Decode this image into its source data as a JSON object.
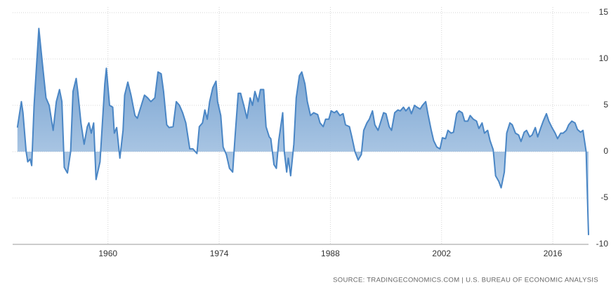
{
  "chart_data": {
    "type": "area",
    "source": "SOURCE: TRADINGECONOMICS.COM | U.S. BUREAU OF ECONOMIC ANALYSIS",
    "x": [
      1948.6,
      1949.1,
      1949.3,
      1949.7,
      1949.9,
      1950.2,
      1950.4,
      1950.7,
      1951.3,
      1951.7,
      1952.2,
      1952.6,
      1953.1,
      1953.5,
      1953.9,
      1954.2,
      1954.5,
      1954.9,
      1955.3,
      1955.6,
      1956,
      1956.2,
      1956.6,
      1957,
      1957.4,
      1957.6,
      1957.9,
      1958.2,
      1958.5,
      1959,
      1959.3,
      1959.6,
      1959.8,
      1960.2,
      1960.6,
      1960.8,
      1961.1,
      1961.5,
      1961.9,
      1962.1,
      1962.5,
      1962.9,
      1963.4,
      1963.7,
      1964.2,
      1964.6,
      1965,
      1965.4,
      1965.9,
      1966.3,
      1966.7,
      1967,
      1967.4,
      1967.7,
      1968.2,
      1968.6,
      1969,
      1969.4,
      1969.8,
      1970.3,
      1970.7,
      1971.2,
      1971.5,
      1971.9,
      1972.2,
      1972.5,
      1972.8,
      1973.2,
      1973.6,
      1973.8,
      1974.2,
      1974.5,
      1974.9,
      1975.3,
      1975.7,
      1976,
      1976.4,
      1976.7,
      1977.1,
      1977.5,
      1977.9,
      1978.2,
      1978.5,
      1978.9,
      1979.2,
      1979.6,
      1979.9,
      1980.3,
      1980.5,
      1980.9,
      1981.2,
      1981.5,
      1982,
      1982.2,
      1982.5,
      1982.7,
      1983,
      1983.4,
      1983.7,
      1984.1,
      1984.4,
      1984.8,
      1985.1,
      1985.5,
      1985.9,
      1986.4,
      1986.7,
      1987.1,
      1987.4,
      1987.8,
      1988.1,
      1988.5,
      1988.8,
      1989.2,
      1989.6,
      1989.9,
      1990.4,
      1990.7,
      1991.1,
      1991.5,
      1991.9,
      1992.2,
      1992.6,
      1992.9,
      1993.3,
      1993.6,
      1994,
      1994.3,
      1994.7,
      1995,
      1995.4,
      1995.7,
      1996.1,
      1996.5,
      1996.8,
      1997.2,
      1997.5,
      1997.9,
      1998.2,
      1998.6,
      1998.9,
      1999.3,
      1999.6,
      2000,
      2000.3,
      2000.7,
      2001,
      2001.4,
      2001.8,
      2002.1,
      2002.5,
      2002.8,
      2003.2,
      2003.5,
      2003.9,
      2004.2,
      2004.6,
      2004.9,
      2005.3,
      2005.6,
      2006,
      2006.4,
      2006.7,
      2007.1,
      2007.4,
      2007.8,
      2008.1,
      2008.5,
      2008.8,
      2009.2,
      2009.5,
      2009.9,
      2010.2,
      2010.6,
      2010.9,
      2011.3,
      2011.7,
      2012,
      2012.4,
      2012.7,
      2013.1,
      2013.4,
      2013.8,
      2014.1,
      2014.5,
      2014.8,
      2015.2,
      2015.5,
      2015.9,
      2016.3,
      2016.6,
      2017,
      2017.3,
      2017.7,
      2018,
      2018.4,
      2018.8,
      2019.1,
      2019.5,
      2019.8,
      2020.2,
      2020.5
    ],
    "values": [
      2.6,
      5.4,
      4.2,
      0,
      -1.1,
      -0.8,
      -1.5,
      5,
      13.3,
      9.9,
      5.8,
      5,
      2.3,
      5.4,
      6.7,
      5.4,
      -1.7,
      -2.3,
      0,
      6.5,
      7.9,
      6.5,
      3.1,
      0.8,
      2.7,
      3.1,
      2,
      3.1,
      -3,
      -1.1,
      3.1,
      7.3,
      9,
      5,
      4.8,
      2,
      2.6,
      -0.7,
      2.3,
      6.1,
      7.5,
      6.1,
      3.9,
      3.6,
      5,
      6.1,
      5.8,
      5.4,
      5.8,
      8.6,
      8.4,
      6.5,
      2.9,
      2.6,
      2.7,
      5.4,
      5,
      4.2,
      3.1,
      0.3,
      0.3,
      -0.2,
      2.7,
      3.1,
      4.5,
      3.5,
      5.4,
      6.9,
      7.6,
      5.4,
      3.9,
      0.5,
      -0.3,
      -1.8,
      -2.2,
      1.6,
      6.3,
      6.3,
      5,
      3.6,
      5.8,
      5,
      6.5,
      5.4,
      6.7,
      6.7,
      2.7,
      1.6,
      1.4,
      -1.4,
      -1.8,
      1.2,
      4.2,
      0,
      -2.2,
      -0.7,
      -2.6,
      0.8,
      5.8,
      8.2,
      8.6,
      7.3,
      5.4,
      3.9,
      4.2,
      4,
      3.1,
      2.7,
      3.5,
      3.5,
      4.4,
      4.2,
      4.4,
      3.9,
      4.1,
      2.9,
      2.7,
      1.6,
      0,
      -0.9,
      -0.3,
      2.3,
      3.1,
      3.5,
      4.4,
      2.9,
      2.3,
      3.1,
      4.2,
      4.1,
      2.7,
      2.3,
      4.2,
      4.5,
      4.4,
      4.8,
      4.4,
      4.8,
      4.1,
      5,
      4.8,
      4.6,
      5,
      5.4,
      4,
      2.3,
      1.2,
      0.5,
      0.3,
      1.5,
      1.4,
      2.3,
      2,
      2.1,
      4.1,
      4.4,
      4.2,
      3.3,
      3.3,
      3.9,
      3.5,
      3.3,
      2.5,
      3.1,
      2,
      2.3,
      1.2,
      0.2,
      -2.6,
      -3.2,
      -3.9,
      -2.2,
      2,
      3.1,
      2.9,
      2,
      1.8,
      1.1,
      2.1,
      2.3,
      1.6,
      1.8,
      2.6,
      1.6,
      2.6,
      3.3,
      4.1,
      3.3,
      2.6,
      2,
      1.4,
      2,
      2,
      2.3,
      2.9,
      3.3,
      3.1,
      2.4,
      2.1,
      2.3,
      0,
      -9
    ],
    "color": "#4a86c5",
    "xlim": [
      1948,
      2020.5
    ],
    "xticks": [
      1960,
      1974,
      1988,
      2002,
      2016
    ],
    "ylim": [
      -10,
      15
    ],
    "yticks": [
      15,
      10,
      5,
      0,
      -5,
      -10
    ],
    "grid": true
  }
}
